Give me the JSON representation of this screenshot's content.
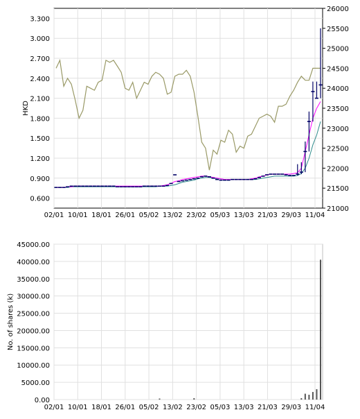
{
  "chart_data": [
    {
      "type": "line",
      "ylabel": "HKD",
      "y_left_ticks": [
        "3.300",
        "3.000",
        "2.700",
        "2.400",
        "2.100",
        "1.800",
        "1.500",
        "1.200",
        "0.900",
        "0.600"
      ],
      "y_left_range": [
        0.45,
        3.45
      ],
      "y_right_ticks": [
        "26000",
        "25500",
        "25000",
        "24500",
        "24000",
        "23500",
        "23000",
        "22500",
        "22000",
        "21500",
        "21000"
      ],
      "y_right_range": [
        21000,
        26000
      ],
      "x_ticks": [
        "02/01",
        "10/01",
        "18/01",
        "26/01",
        "05/02",
        "13/02",
        "23/02",
        "05/03",
        "13/03",
        "21/03",
        "29/03",
        "11/04"
      ],
      "grid": true,
      "colors": {
        "price": "#000066",
        "ma_short": "#ff00ff",
        "ma_long": "#2e8b8b",
        "index": "#999966"
      },
      "index_values": [
        24500,
        24700,
        24050,
        24250,
        24100,
        23700,
        23250,
        23450,
        24050,
        24000,
        23950,
        24150,
        24200,
        24700,
        24650,
        24700,
        24550,
        24400,
        24000,
        23950,
        24150,
        23750,
        23950,
        24150,
        24100,
        24300,
        24400,
        24350,
        24250,
        23850,
        23900,
        24300,
        24350,
        24350,
        24450,
        24300,
        23900,
        23300,
        22650,
        22500,
        21950,
        22450,
        22350,
        22700,
        22650,
        22950,
        22850,
        22400,
        22550,
        22500,
        22800,
        22850,
        23050,
        23250,
        23300,
        23350,
        23300,
        23150,
        23550,
        23550,
        23600,
        23800,
        23950,
        24150,
        24300,
        24200,
        24200,
        24500,
        24500,
        24500
      ],
      "price_values": [
        0.76,
        0.76,
        0.76,
        0.77,
        0.78,
        0.78,
        0.78,
        0.78,
        0.78,
        0.78,
        0.78,
        0.78,
        0.78,
        0.78,
        0.78,
        0.78,
        0.77,
        0.77,
        0.77,
        0.77,
        0.77,
        0.77,
        0.77,
        0.78,
        0.78,
        0.78,
        0.78,
        0.78,
        0.78,
        0.79,
        0.82,
        0.95,
        0.85,
        0.86,
        0.87,
        0.88,
        0.89,
        0.9,
        0.92,
        0.93,
        0.92,
        0.9,
        0.88,
        0.87,
        0.87,
        0.87,
        0.88,
        0.88,
        0.88,
        0.88,
        0.88,
        0.88,
        0.89,
        0.91,
        0.93,
        0.95,
        0.96,
        0.96,
        0.96,
        0.96,
        0.95,
        0.94,
        0.94,
        0.96,
        0.99,
        1.3,
        1.75,
        2.2,
        2.1,
        2.3
      ],
      "ma_short_values": [
        0.76,
        0.76,
        0.76,
        0.77,
        0.77,
        0.78,
        0.78,
        0.78,
        0.78,
        0.78,
        0.78,
        0.78,
        0.78,
        0.78,
        0.78,
        0.78,
        0.78,
        0.78,
        0.78,
        0.78,
        0.78,
        0.78,
        0.78,
        0.78,
        0.78,
        0.78,
        0.78,
        0.78,
        0.79,
        0.8,
        0.82,
        0.85,
        0.86,
        0.88,
        0.89,
        0.9,
        0.91,
        0.92,
        0.93,
        0.93,
        0.92,
        0.91,
        0.9,
        0.89,
        0.88,
        0.88,
        0.88,
        0.88,
        0.88,
        0.88,
        0.88,
        0.89,
        0.9,
        0.92,
        0.93,
        0.95,
        0.96,
        0.96,
        0.96,
        0.96,
        0.96,
        0.96,
        0.97,
        0.98,
        1.05,
        1.3,
        1.55,
        1.8,
        1.95,
        2.05
      ],
      "ma_long_values": [
        0.76,
        0.76,
        0.76,
        0.76,
        0.77,
        0.77,
        0.77,
        0.77,
        0.77,
        0.77,
        0.77,
        0.77,
        0.77,
        0.77,
        0.77,
        0.77,
        0.77,
        0.77,
        0.77,
        0.77,
        0.77,
        0.77,
        0.77,
        0.77,
        0.77,
        0.77,
        0.77,
        0.78,
        0.78,
        0.78,
        0.79,
        0.8,
        0.82,
        0.84,
        0.85,
        0.86,
        0.87,
        0.89,
        0.9,
        0.91,
        0.91,
        0.9,
        0.89,
        0.89,
        0.88,
        0.88,
        0.88,
        0.88,
        0.88,
        0.88,
        0.88,
        0.88,
        0.88,
        0.89,
        0.9,
        0.91,
        0.92,
        0.93,
        0.93,
        0.93,
        0.93,
        0.93,
        0.93,
        0.94,
        0.97,
        1.05,
        1.2,
        1.4,
        1.55,
        1.75
      ]
    },
    {
      "type": "bar",
      "ylabel": "No. of shares (k)",
      "y_ticks": [
        "45000.00",
        "40000.00",
        "35000.00",
        "30000.00",
        "25000.00",
        "20000.00",
        "15000.00",
        "10000.00",
        "5000.00",
        "0.00"
      ],
      "y_range": [
        0,
        45000
      ],
      "x_ticks": [
        "02/01",
        "10/01",
        "18/01",
        "26/01",
        "05/02",
        "13/02",
        "23/02",
        "05/03",
        "13/03",
        "21/03",
        "29/03",
        "11/04"
      ],
      "grid": true,
      "bar_color": "#555555",
      "bars": [
        {
          "i": 27,
          "v": 300
        },
        {
          "i": 36,
          "v": 400
        },
        {
          "i": 64,
          "v": 400
        },
        {
          "i": 65,
          "v": 1700
        },
        {
          "i": 66,
          "v": 1400
        },
        {
          "i": 67,
          "v": 2200
        },
        {
          "i": 68,
          "v": 3000
        },
        {
          "i": 69,
          "v": 40500
        }
      ]
    }
  ]
}
